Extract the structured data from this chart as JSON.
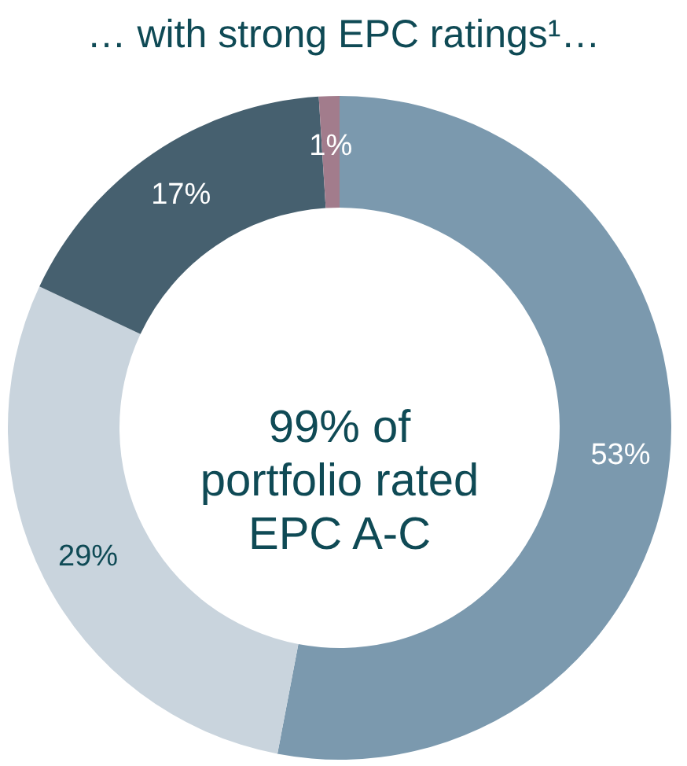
{
  "chart_data": {
    "type": "donut",
    "title": "… with strong EPC ratings¹…",
    "categories": [
      null,
      null,
      null,
      null
    ],
    "values": [
      53,
      29,
      17,
      1
    ],
    "colors": [
      "#7b99ae",
      "#c9d4dd",
      "#46606f",
      "#a27c8c"
    ],
    "value_labels": [
      "53%",
      "29%",
      "17%",
      "1%"
    ],
    "annotations": [
      "99% of\nportfolio rated\nEPC A-C"
    ]
  }
}
